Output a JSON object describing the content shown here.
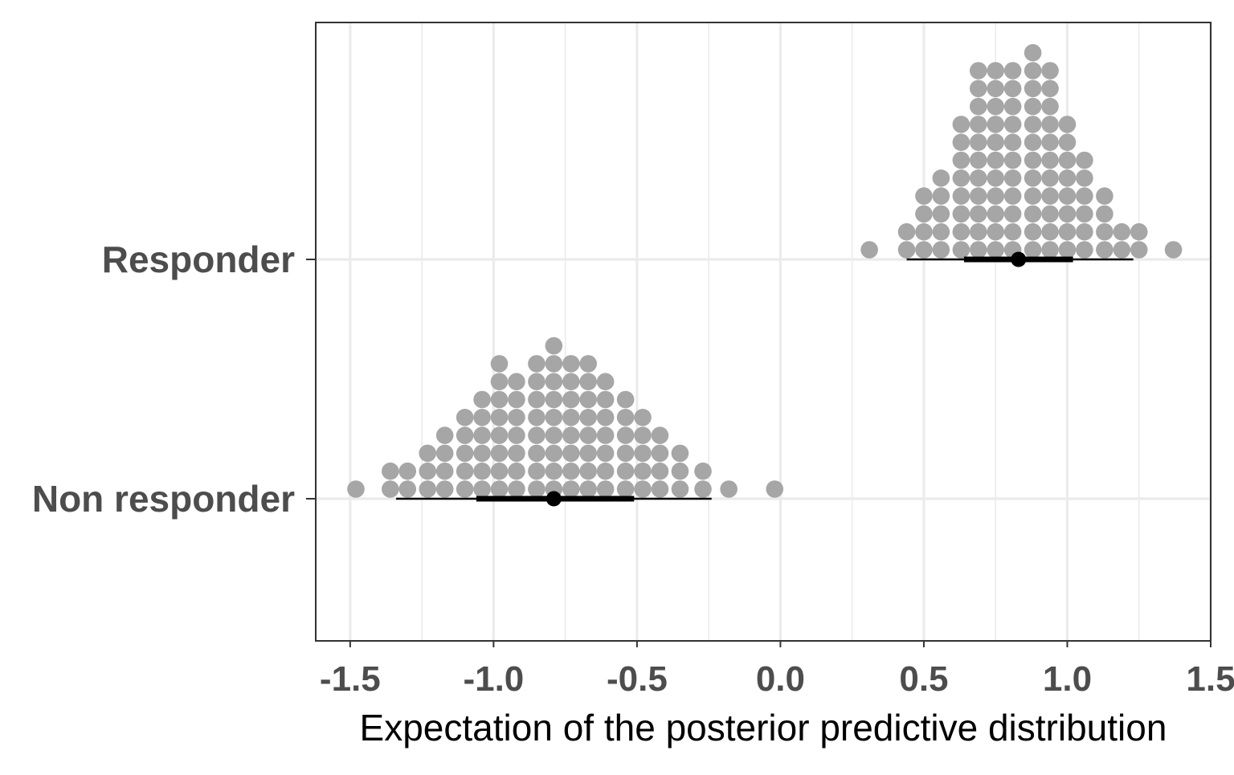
{
  "chart_data": {
    "type": "scatter",
    "subtype": "dotplot-with-interval",
    "title": "",
    "xlabel": "Expectation of the posterior predictive distribution",
    "ylabel": "",
    "xlim": [
      -1.62,
      1.5
    ],
    "x_ticks": [
      -1.5,
      -1.0,
      -0.5,
      0.0,
      0.5,
      1.0,
      1.5
    ],
    "x_tick_labels": [
      "-1.5",
      "-1.0",
      "-0.5",
      "0.0",
      "0.5",
      "1.0",
      "1.5"
    ],
    "categories": [
      "Non responder",
      "Responder"
    ],
    "grid": true,
    "series": [
      {
        "name": "Non responder",
        "bin_width": 0.0625,
        "dot_counts": [
          {
            "x": -1.48,
            "count": 1
          },
          {
            "x": -1.36,
            "count": 2
          },
          {
            "x": -1.3,
            "count": 2
          },
          {
            "x": -1.23,
            "count": 3
          },
          {
            "x": -1.17,
            "count": 4
          },
          {
            "x": -1.1,
            "count": 5
          },
          {
            "x": -1.04,
            "count": 6
          },
          {
            "x": -0.98,
            "count": 8
          },
          {
            "x": -0.92,
            "count": 7
          },
          {
            "x": -0.85,
            "count": 8
          },
          {
            "x": -0.79,
            "count": 9
          },
          {
            "x": -0.73,
            "count": 8
          },
          {
            "x": -0.67,
            "count": 8
          },
          {
            "x": -0.61,
            "count": 7
          },
          {
            "x": -0.54,
            "count": 6
          },
          {
            "x": -0.48,
            "count": 5
          },
          {
            "x": -0.42,
            "count": 4
          },
          {
            "x": -0.35,
            "count": 3
          },
          {
            "x": -0.27,
            "count": 2
          },
          {
            "x": -0.18,
            "count": 1
          },
          {
            "x": -0.02,
            "count": 1
          }
        ],
        "point_estimate": -0.79,
        "interval_inner": [
          -1.06,
          -0.51
        ],
        "interval_outer": [
          -1.34,
          -0.24
        ]
      },
      {
        "name": "Responder",
        "bin_width": 0.0625,
        "dot_counts": [
          {
            "x": 0.31,
            "count": 1
          },
          {
            "x": 0.44,
            "count": 2
          },
          {
            "x": 0.5,
            "count": 4
          },
          {
            "x": 0.56,
            "count": 5
          },
          {
            "x": 0.63,
            "count": 8
          },
          {
            "x": 0.69,
            "count": 11
          },
          {
            "x": 0.75,
            "count": 11
          },
          {
            "x": 0.81,
            "count": 11
          },
          {
            "x": 0.88,
            "count": 12
          },
          {
            "x": 0.94,
            "count": 11
          },
          {
            "x": 1.0,
            "count": 8
          },
          {
            "x": 1.06,
            "count": 6
          },
          {
            "x": 1.13,
            "count": 4
          },
          {
            "x": 1.19,
            "count": 2
          },
          {
            "x": 1.25,
            "count": 2
          },
          {
            "x": 1.37,
            "count": 1
          }
        ],
        "point_estimate": 0.83,
        "interval_inner": [
          0.64,
          1.02
        ],
        "interval_outer": [
          0.44,
          1.23
        ]
      }
    ],
    "colors": {
      "dots": "#a6a6a6",
      "interval": "#000000",
      "grid": "#ebebeb",
      "panel_border": "#333333",
      "tick_text": "#4d4d4d"
    }
  }
}
